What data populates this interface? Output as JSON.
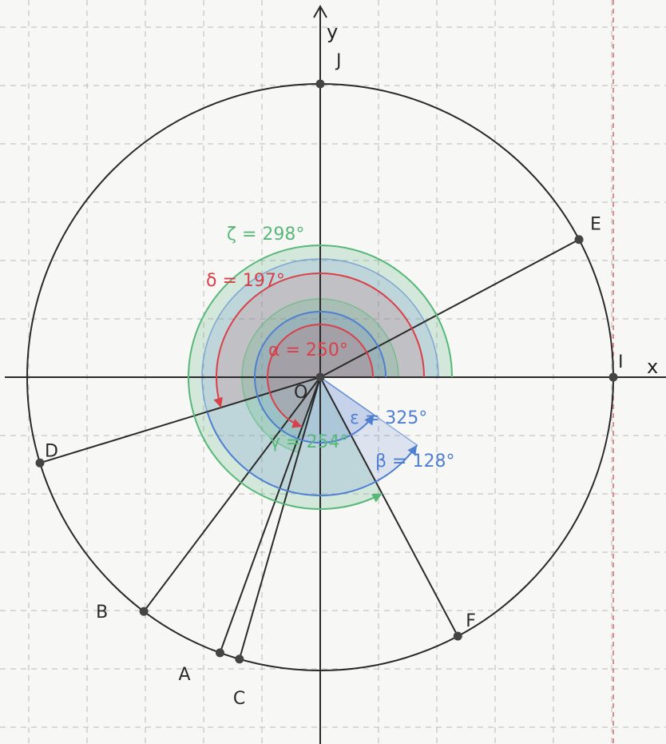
{
  "axes": {
    "x_label": "x",
    "y_label": "y",
    "origin_label": "O"
  },
  "colors": {
    "grid": "#b9b9b9",
    "axis": "#2a2a2a",
    "circle": "#2a2a2a",
    "red": "#d8404a",
    "blue": "#4f7fd1",
    "green": "#58b87a",
    "dashed_red": "#d76a6a"
  },
  "points": [
    {
      "name": "J",
      "angle": 90
    },
    {
      "name": "E",
      "angle": 28
    },
    {
      "name": "I",
      "angle": 0
    },
    {
      "name": "D",
      "angle": 197
    },
    {
      "name": "B",
      "angle": 233
    },
    {
      "name": "A",
      "angle": 250
    },
    {
      "name": "C",
      "angle": 254
    },
    {
      "name": "F",
      "angle": 298
    }
  ],
  "angles": [
    {
      "label": "ζ = 298°",
      "color": "green",
      "start": 0,
      "end": 298
    },
    {
      "label": "δ = 197°",
      "color": "red",
      "start": 0,
      "end": 197
    },
    {
      "label": "α = 250°",
      "color": "red",
      "start": 0,
      "end": 250
    },
    {
      "label": "ε = 325°",
      "color": "blue",
      "start": 0,
      "end": 325
    },
    {
      "label": "β = 128°",
      "color": "blue",
      "start": 197,
      "end": 325
    },
    {
      "label": "γ = 254°",
      "color": "green",
      "start": 0,
      "end": 254
    }
  ]
}
